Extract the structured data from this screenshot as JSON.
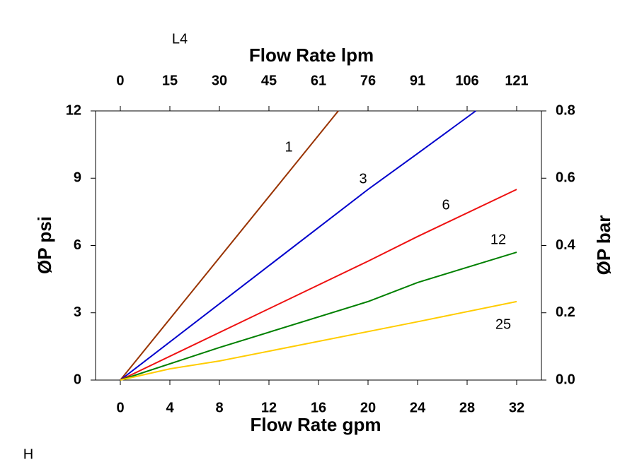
{
  "chart_data": {
    "type": "line",
    "label_top_left": "L4",
    "label_bottom_left": "H",
    "xlabel": "Flow Rate gpm",
    "x2label": "Flow Rate lpm",
    "ylabel": "ØP psi",
    "y2label": "ØP bar",
    "xlim": [
      -2,
      34
    ],
    "xticks": [
      0,
      4,
      8,
      12,
      16,
      20,
      24,
      28,
      32
    ],
    "x2lim": [
      -7.57,
      128.7
    ],
    "x2ticks": [
      0,
      {
        "value": 15.14,
        "label": "15"
      },
      {
        "value": 30.28,
        "label": "30"
      },
      {
        "value": 45.42,
        "label": "45"
      },
      {
        "value": 60.57,
        "label": "61"
      },
      {
        "value": 75.71,
        "label": "76"
      },
      {
        "value": 90.85,
        "label": "91"
      },
      {
        "value": 105.99,
        "label": "106"
      },
      {
        "value": 121.13,
        "label": "121"
      }
    ],
    "ylim": [
      0,
      12
    ],
    "yticks": [
      0,
      3,
      6,
      9,
      12
    ],
    "y2lim": [
      0,
      0.8
    ],
    "y2ticks": [
      {
        "value": 0,
        "label": "0.0"
      },
      0.2,
      0.4,
      0.6,
      0.8
    ],
    "series": [
      {
        "name": "1",
        "color": "#993300",
        "x": [
          0,
          17.6
        ],
        "values": [
          0,
          12
        ]
      },
      {
        "name": "3",
        "color": "#0000cc",
        "x": [
          0,
          20,
          24,
          28.7
        ],
        "values": [
          0,
          8.5,
          10.1,
          12
        ]
      },
      {
        "name": "6",
        "color": "#ee1111",
        "x": [
          0,
          20,
          24,
          32
        ],
        "values": [
          0,
          5.3,
          6.4,
          8.5
        ]
      },
      {
        "name": "12",
        "color": "#008000",
        "x": [
          0,
          8,
          20,
          24,
          32
        ],
        "values": [
          0,
          1.45,
          3.5,
          4.35,
          5.7
        ]
      },
      {
        "name": "25",
        "color": "#ffcc00",
        "x": [
          0,
          4,
          8,
          24,
          32
        ],
        "values": [
          0,
          0.5,
          0.85,
          2.6,
          3.5
        ]
      }
    ]
  }
}
